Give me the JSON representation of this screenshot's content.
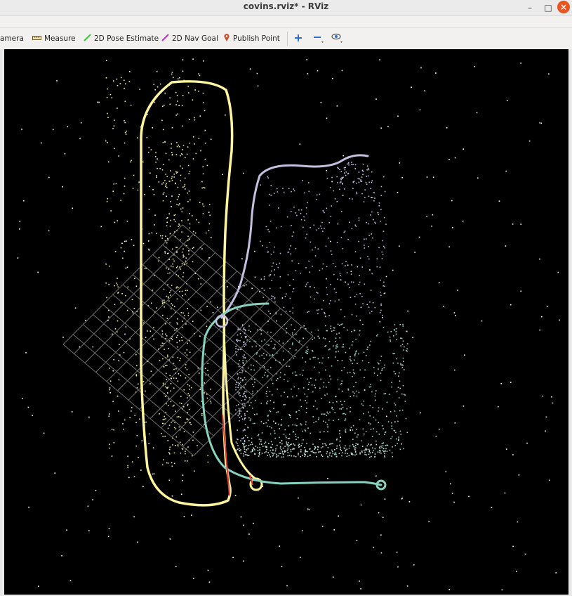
{
  "window": {
    "title": "covins.rviz* - RViz"
  },
  "toolbar": {
    "camera_label": "amera",
    "measure_label": "Measure",
    "pose_estimate_label": "2D Pose Estimate",
    "nav_goal_label": "2D Nav Goal",
    "publish_point_label": "Publish Point"
  },
  "colors": {
    "background": "#000000",
    "grid": "#8c8c8c",
    "trajectory_yellow": "#fff59d",
    "trajectory_lavender": "#c5c0e0",
    "trajectory_teal": "#86d3bf",
    "axis_red": "#e53935"
  },
  "icons": {
    "measure": "ruler-icon",
    "pose_estimate": "green-arrow-icon",
    "nav_goal": "magenta-arrow-icon",
    "publish_point": "map-pin-icon",
    "zoom_in": "plus-icon",
    "zoom_out": "minus-icon",
    "view": "eye-icon"
  }
}
